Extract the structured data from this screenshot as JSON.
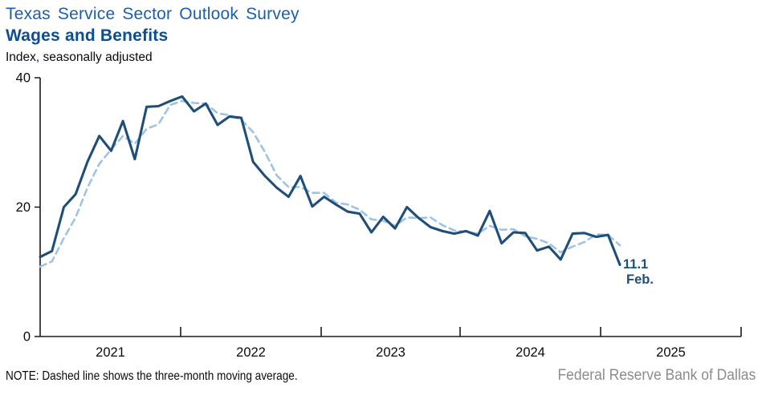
{
  "header": {
    "title": "Texas Service Sector Outlook Survey",
    "subtitle": "Wages and Benefits",
    "unit_label": "Index, seasonally adjusted"
  },
  "chart_data": {
    "type": "line",
    "title": "Texas Service Sector Outlook Survey — Wages and Benefits",
    "ylabel": "Index, seasonally adjusted",
    "ylim": [
      0,
      40
    ],
    "y_ticks": [
      40,
      20,
      0
    ],
    "x_tick_years": [
      "2021",
      "2022",
      "2023",
      "2024",
      "2025"
    ],
    "grid": false,
    "legend_position": "none",
    "x": [
      "Jan 2021",
      "Feb 2021",
      "Mar 2021",
      "Apr 2021",
      "May 2021",
      "Jun 2021",
      "Jul 2021",
      "Aug 2021",
      "Sep 2021",
      "Oct 2021",
      "Nov 2021",
      "Dec 2021",
      "Jan 2022",
      "Feb 2022",
      "Mar 2022",
      "Apr 2022",
      "May 2022",
      "Jun 2022",
      "Jul 2022",
      "Aug 2022",
      "Sep 2022",
      "Oct 2022",
      "Nov 2022",
      "Dec 2022",
      "Jan 2023",
      "Feb 2023",
      "Mar 2023",
      "Apr 2023",
      "May 2023",
      "Jun 2023",
      "Jul 2023",
      "Aug 2023",
      "Sep 2023",
      "Oct 2023",
      "Nov 2023",
      "Dec 2023",
      "Jan 2024",
      "Feb 2024",
      "Mar 2024",
      "Apr 2024",
      "May 2024",
      "Jun 2024",
      "Jul 2024",
      "Aug 2024",
      "Sep 2024",
      "Oct 2024",
      "Nov 2024",
      "Dec 2024",
      "Jan 2025",
      "Feb 2025"
    ],
    "series": [
      {
        "name": "Wages and benefits index",
        "style": "solid",
        "color": "#1F4E79",
        "values": [
          12.3,
          13.2,
          20.0,
          22.0,
          27.0,
          31.0,
          28.7,
          33.3,
          27.4,
          35.5,
          35.6,
          36.4,
          37.1,
          34.8,
          36.0,
          32.7,
          34.0,
          33.8,
          27.0,
          24.8,
          23.0,
          21.6,
          24.8,
          20.1,
          21.6,
          20.4,
          19.3,
          19.0,
          16.1,
          18.5,
          16.7,
          20.0,
          18.3,
          16.9,
          16.3,
          15.9,
          16.3,
          15.6,
          19.4,
          14.4,
          16.1,
          16.0,
          13.3,
          13.9,
          11.9,
          15.9,
          16.0,
          15.4,
          15.7,
          11.1
        ]
      },
      {
        "name": "Three-month moving average",
        "style": "dashed",
        "color": "#9DC3E6",
        "values": [
          10.8,
          11.6,
          15.2,
          18.4,
          23.0,
          26.7,
          28.9,
          31.0,
          29.8,
          32.1,
          32.8,
          35.8,
          36.4,
          36.1,
          36.0,
          34.5,
          34.2,
          33.5,
          31.6,
          28.5,
          24.9,
          23.1,
          23.1,
          22.2,
          22.2,
          20.7,
          20.4,
          19.6,
          18.1,
          17.9,
          17.1,
          18.4,
          18.3,
          18.4,
          17.2,
          16.4,
          16.2,
          15.9,
          17.1,
          16.5,
          16.6,
          15.5,
          15.1,
          14.4,
          13.0,
          13.9,
          14.6,
          15.8,
          15.7,
          14.1
        ]
      }
    ],
    "end_label": {
      "value": "11.1",
      "month": "Feb."
    }
  },
  "footer": {
    "note": "NOTE: Dashed line shows the three-month moving average.",
    "source": "Federal Reserve Bank of Dallas"
  }
}
